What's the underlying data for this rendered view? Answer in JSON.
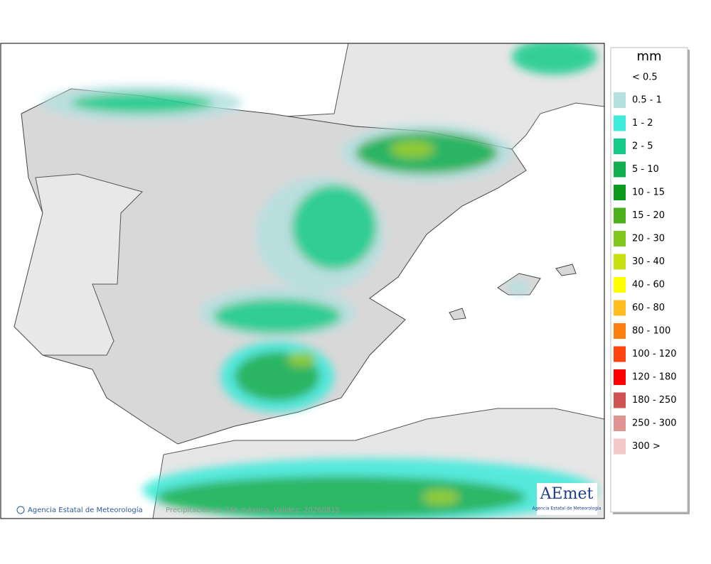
{
  "legend": {
    "title": "mm",
    "below_label": "< 0.5",
    "items": [
      {
        "label": "0.5 - 1",
        "color": "#b4e0e0"
      },
      {
        "label": "1 - 2",
        "color": "#3eeada"
      },
      {
        "label": "2 - 5",
        "color": "#12cc8c"
      },
      {
        "label": "5 - 10",
        "color": "#10b050"
      },
      {
        "label": "10 - 15",
        "color": "#0a9a1c"
      },
      {
        "label": "15 - 20",
        "color": "#4cb01c"
      },
      {
        "label": "20 - 30",
        "color": "#82c818"
      },
      {
        "label": "30 - 40",
        "color": "#c8e012"
      },
      {
        "label": "40 - 60",
        "color": "#ffff00"
      },
      {
        "label": "60 - 80",
        "color": "#ffbe1e"
      },
      {
        "label": "80 - 100",
        "color": "#ff8010"
      },
      {
        "label": "100 - 120",
        "color": "#ff4412"
      },
      {
        "label": "120 - 180",
        "color": "#ff0000"
      },
      {
        "label": "180 - 250",
        "color": "#d05252"
      },
      {
        "label": "250 - 300",
        "color": "#e09494"
      },
      {
        "label": "300 >",
        "color": "#f2c8c8"
      }
    ]
  },
  "footer": {
    "credit": "Agencia Estatal de Meteorología",
    "caption": "Precipitación en 24h máxima. Validez: 20260815"
  },
  "logo": {
    "brand": "AEmet",
    "subtitle": "Agencia Estatal de Meteorología"
  }
}
